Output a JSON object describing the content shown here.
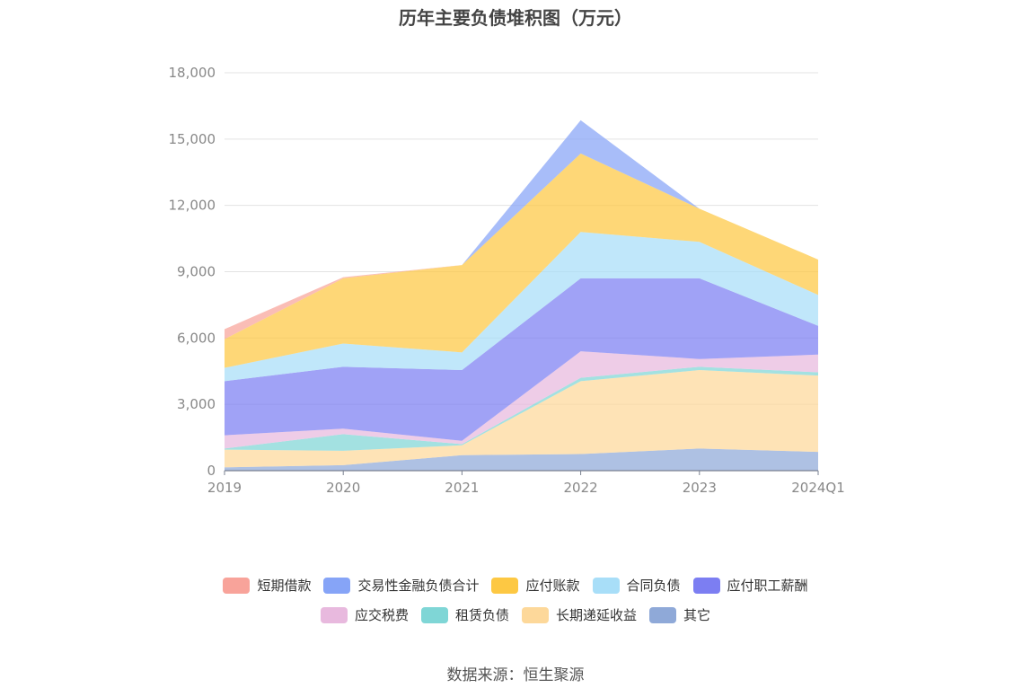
{
  "title": "历年主要负债堆积图（万元）",
  "source": "数据来源：恒生聚源",
  "chart_data": {
    "type": "area",
    "stacked": true,
    "categories": [
      "2019",
      "2020",
      "2021",
      "2022",
      "2023",
      "2024Q1"
    ],
    "ylim": [
      0,
      18000
    ],
    "yticks": [
      "0",
      "3,000",
      "6,000",
      "9,000",
      "12,000",
      "15,000",
      "18,000"
    ],
    "ytick_values": [
      0,
      3000,
      6000,
      9000,
      12000,
      15000,
      18000
    ],
    "grid": true,
    "legend_position": "bottom",
    "series": [
      {
        "name": "其它",
        "color": "#8fa9d8",
        "values": [
          150,
          250,
          700,
          750,
          1000,
          850
        ]
      },
      {
        "name": "长期递延收益",
        "color": "#fdd89a",
        "values": [
          800,
          650,
          450,
          3300,
          3550,
          3450
        ]
      },
      {
        "name": "租赁负债",
        "color": "#7fd6d6",
        "values": [
          50,
          750,
          50,
          150,
          150,
          150
        ]
      },
      {
        "name": "应交税费",
        "color": "#e8b9de",
        "values": [
          600,
          250,
          150,
          1200,
          350,
          800
        ]
      },
      {
        "name": "应付职工薪酬",
        "color": "#7c7ef2",
        "values": [
          2450,
          2800,
          3200,
          3300,
          3650,
          1300
        ]
      },
      {
        "name": "合同负债",
        "color": "#a8def8",
        "values": [
          600,
          1050,
          800,
          2100,
          1650,
          1400
        ]
      },
      {
        "name": "应付账款",
        "color": "#fdc843",
        "values": [
          1300,
          2950,
          3950,
          3550,
          1500,
          1600
        ]
      },
      {
        "name": "交易性金融负债合计",
        "color": "#86a4f7",
        "values": [
          0,
          0,
          0,
          1500,
          0,
          0
        ]
      },
      {
        "name": "短期借款",
        "color": "#f8a39a",
        "values": [
          450,
          50,
          0,
          0,
          0,
          0
        ]
      }
    ],
    "legend_order": [
      "短期借款",
      "交易性金融负债合计",
      "应付账款",
      "合同负债",
      "应付职工薪酬",
      "应交税费",
      "租赁负债",
      "长期递延收益",
      "其它"
    ]
  }
}
